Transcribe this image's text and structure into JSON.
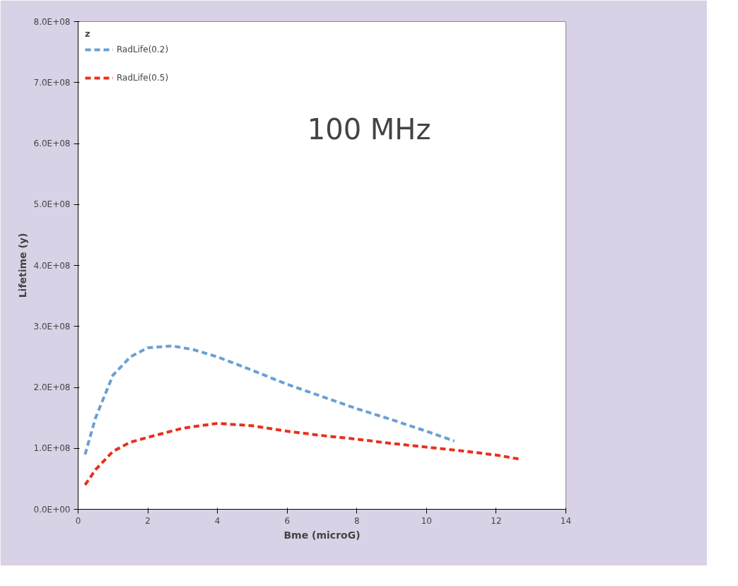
{
  "chart_data": {
    "type": "line",
    "xlabel": "Bme (microG)",
    "ylabel": "Lifetime (y)",
    "legend_title": "z",
    "annotations": [
      "100 MHz"
    ],
    "xlim": [
      0,
      14
    ],
    "xticks": [
      0,
      2,
      4,
      6,
      8,
      10,
      12,
      14
    ],
    "ylim": [
      0,
      800000000
    ],
    "yticks": [
      {
        "value": 0,
        "label": "0.0E+00"
      },
      {
        "value": 100000000,
        "label": "1.0E+08"
      },
      {
        "value": 200000000,
        "label": "2.0E+08"
      },
      {
        "value": 300000000,
        "label": "3.0E+08"
      },
      {
        "value": 400000000,
        "label": "4.0E+08"
      },
      {
        "value": 500000000,
        "label": "5.0E+08"
      },
      {
        "value": 600000000,
        "label": "6.0E+08"
      },
      {
        "value": 700000000,
        "label": "7.0E+08"
      },
      {
        "value": 800000000,
        "label": "8.0E+08"
      }
    ],
    "grid": false,
    "legend": "top left",
    "marker": "none",
    "line_style": "dashed",
    "series": [
      {
        "name": "RadLife(0.2)",
        "color": "#6a9fd4",
        "x": [
          0.2,
          0.5,
          1,
          1.5,
          2,
          2.7,
          3.3,
          4,
          5,
          6,
          7,
          8,
          9,
          10,
          10.8
        ],
        "values": [
          90000000,
          150000000,
          220000000,
          250000000,
          265000000,
          268000000,
          262000000,
          250000000,
          228000000,
          205000000,
          185000000,
          165000000,
          147000000,
          128000000,
          112000000
        ]
      },
      {
        "name": "RadLife(0.5)",
        "color": "#e8301c",
        "x": [
          0.2,
          0.5,
          1,
          1.5,
          2,
          3,
          4,
          5,
          6,
          7,
          8,
          9,
          10,
          11,
          12,
          12.7
        ],
        "values": [
          40000000,
          65000000,
          95000000,
          110000000,
          118000000,
          133000000,
          141000000,
          137000000,
          128000000,
          121000000,
          115000000,
          108000000,
          102000000,
          96000000,
          89000000,
          82000000
        ]
      }
    ]
  }
}
